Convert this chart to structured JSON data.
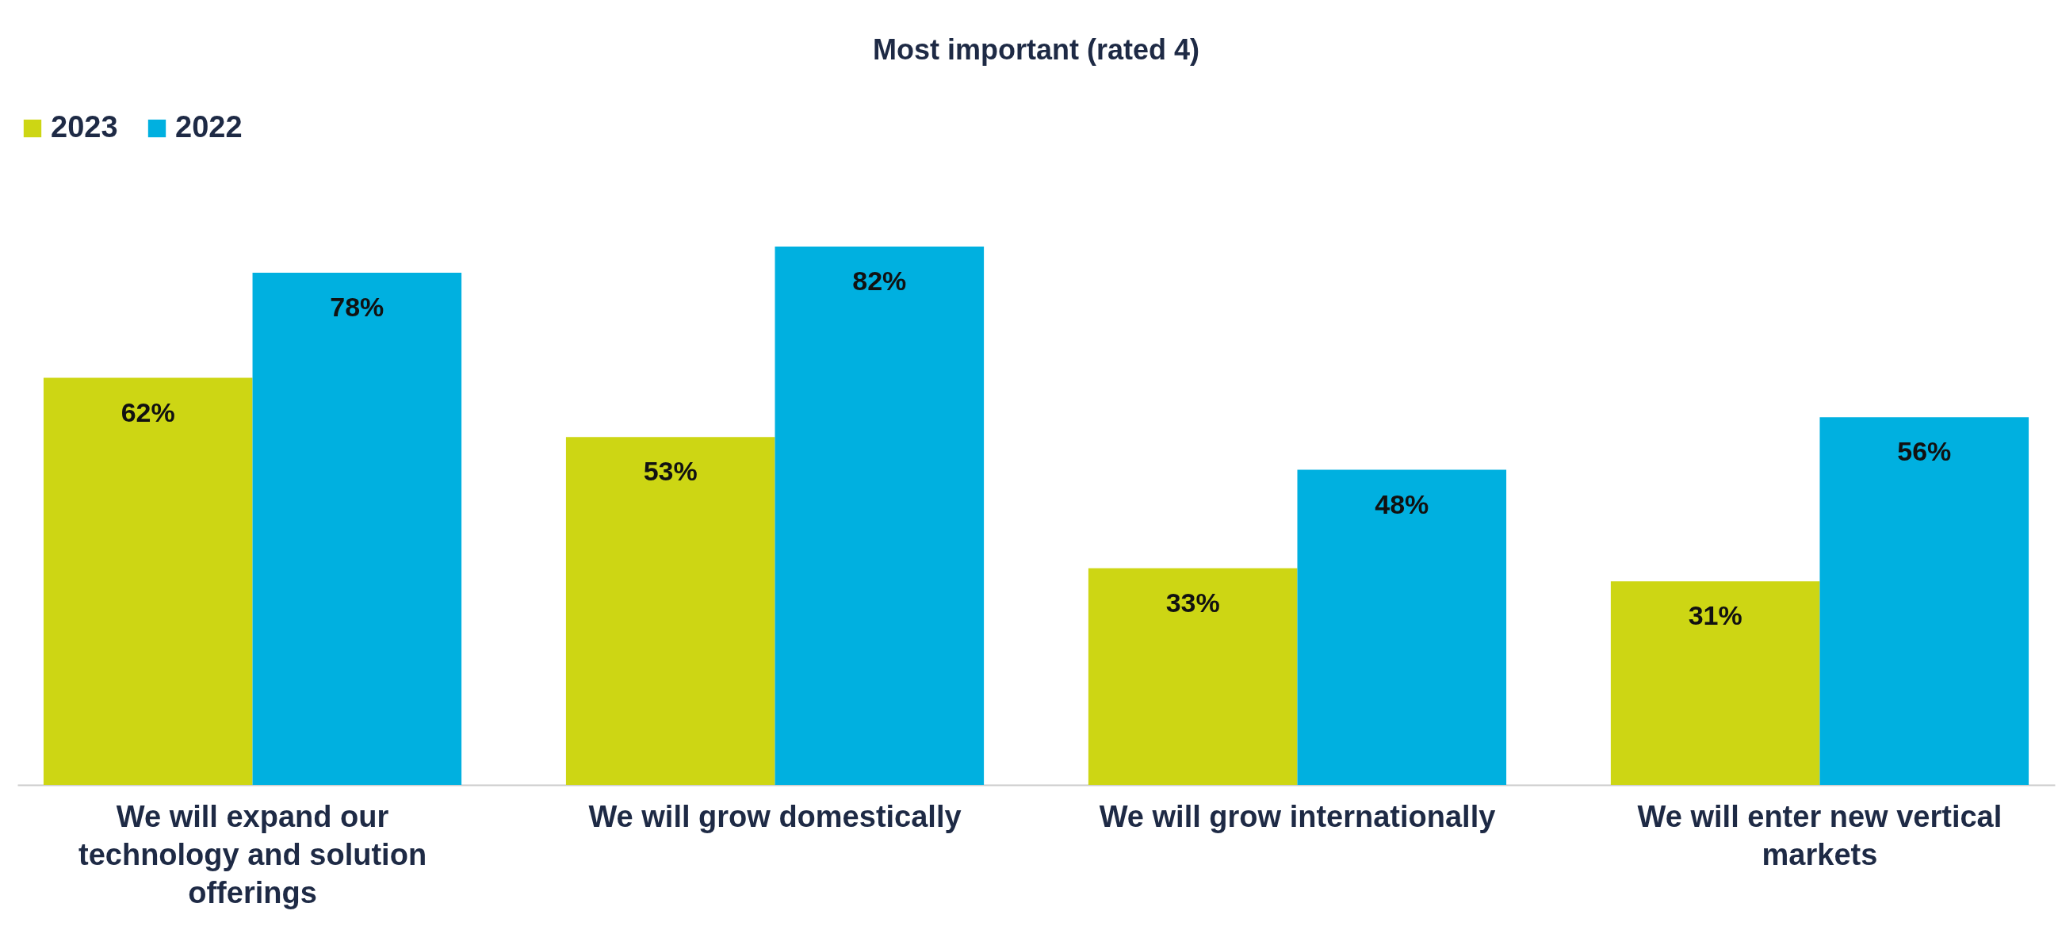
{
  "chart_data": {
    "type": "bar",
    "title": "Most important (rated 4)",
    "categories": [
      "We will expand our technology and solution offerings",
      "We will grow domestically",
      "We will grow internationally",
      "We will enter new vertical markets"
    ],
    "series": [
      {
        "name": "2023",
        "color": "#cdd614",
        "values": [
          62,
          53,
          33,
          31
        ],
        "value_labels": [
          "62%",
          "53%",
          "33%",
          "31%"
        ]
      },
      {
        "name": "2022",
        "color": "#00b0e0",
        "values": [
          78,
          82,
          48,
          56
        ],
        "value_labels": [
          "78%",
          "82%",
          "48%",
          "56%"
        ]
      }
    ],
    "legend": "top",
    "grid": false
  }
}
